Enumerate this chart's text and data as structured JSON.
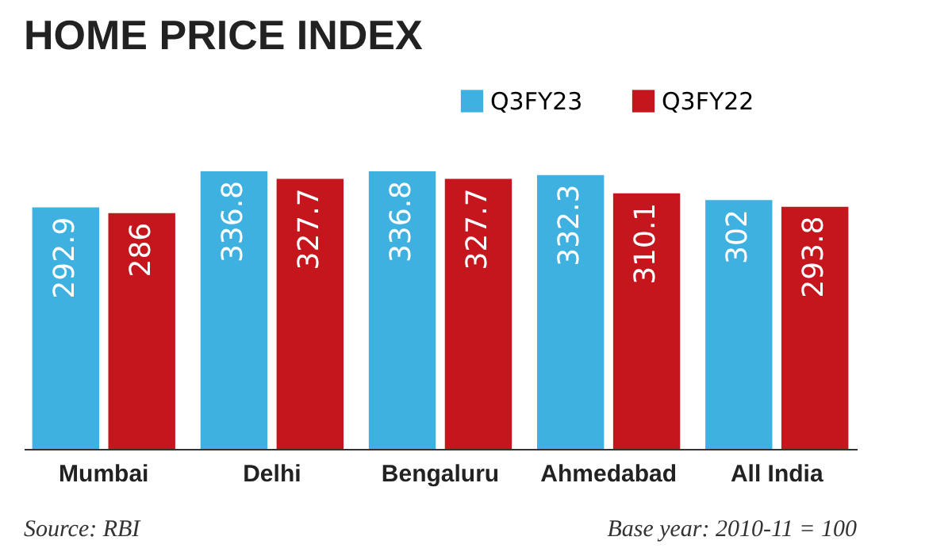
{
  "chart_data": {
    "type": "bar",
    "title": "HOME PRICE INDEX",
    "categories": [
      "Mumbai",
      "Delhi",
      "Bengaluru",
      "Ahmedabad",
      "All India"
    ],
    "series": [
      {
        "name": "Q3FY23",
        "color": "#3eb1e0",
        "values": [
          292.9,
          336.8,
          336.8,
          332.3,
          302
        ]
      },
      {
        "name": "Q3FY22",
        "color": "#c4161c",
        "values": [
          286,
          327.7,
          327.7,
          310.1,
          293.8
        ]
      }
    ],
    "data_labels": true,
    "legend": "top right",
    "tick_labels": "x",
    "annotations": [
      "Source: RBI",
      "Base year: 2010-11 = 100"
    ]
  }
}
